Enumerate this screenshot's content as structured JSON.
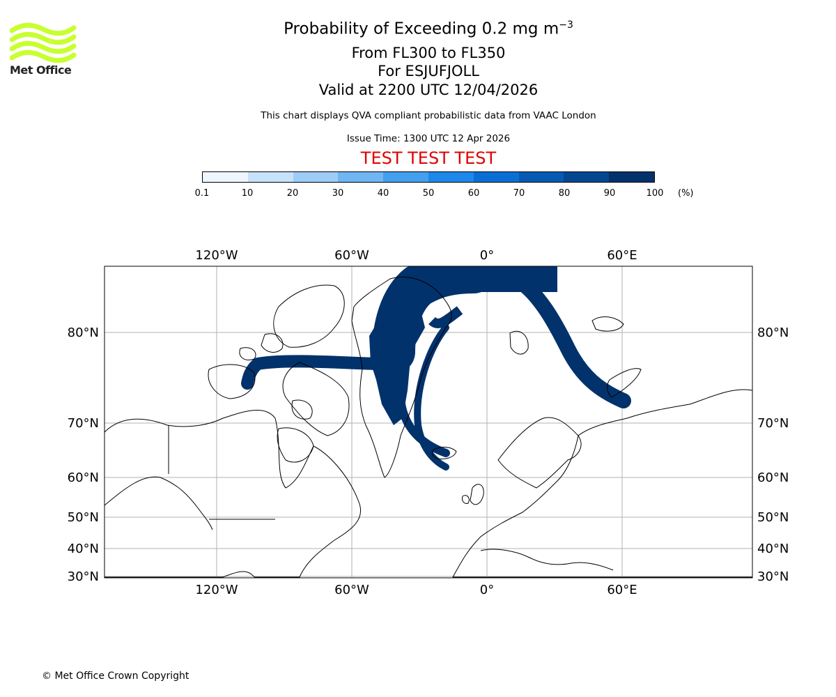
{
  "header": {
    "title_prefix": "Probability of Exceeding 0.2 mg m",
    "title_sup": "−3",
    "flight_levels": "From FL300 to FL350",
    "volcano": "For ESJUFJOLL",
    "valid_time": "Valid at 2200 UTC 12/04/2026",
    "disclaimer": "This chart displays QVA compliant probabilistic data from VAAC London",
    "issue_time": "Issue Time: 1300 UTC 12 Apr 2026",
    "test_banner": "TEST TEST TEST"
  },
  "logo": {
    "text": "Met Office",
    "color": "#c8ff2e"
  },
  "colorbar": {
    "ticks": [
      "0.1",
      "10",
      "20",
      "30",
      "40",
      "50",
      "60",
      "70",
      "80",
      "90",
      "100"
    ],
    "unit": "(%)",
    "colors": [
      "#eef6ff",
      "#c6e2fb",
      "#9dcdf7",
      "#6fb6f3",
      "#42a0ef",
      "#1e88ea",
      "#0a6fd4",
      "#065ab3",
      "#044791",
      "#02326b"
    ]
  },
  "map": {
    "lon_labels": [
      "120°W",
      "60°W",
      "0°",
      "60°E"
    ],
    "lat_labels": [
      "80°N",
      "70°N",
      "60°N",
      "50°N",
      "40°N",
      "30°N"
    ],
    "plume_color": "#02326b"
  },
  "footer": {
    "copyright": "© Met Office Crown Copyright"
  }
}
